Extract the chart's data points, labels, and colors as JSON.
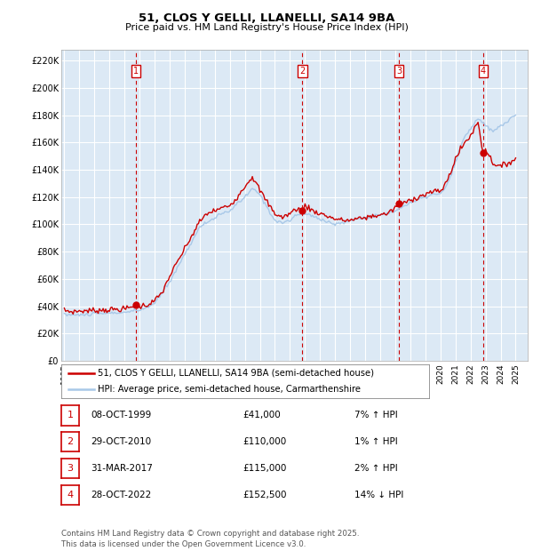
{
  "title": "51, CLOS Y GELLI, LLANELLI, SA14 9BA",
  "subtitle": "Price paid vs. HM Land Registry's House Price Index (HPI)",
  "bg_color": "#dce9f5",
  "grid_color": "#ffffff",
  "hpi_line_color": "#a8c8e8",
  "price_line_color": "#cc0000",
  "marker_color": "#cc0000",
  "vline_color": "#cc0000",
  "yticks": [
    0,
    20000,
    40000,
    60000,
    80000,
    100000,
    120000,
    140000,
    160000,
    180000,
    200000,
    220000
  ],
  "ytick_labels": [
    "£0",
    "£20K",
    "£40K",
    "£60K",
    "£80K",
    "£100K",
    "£120K",
    "£140K",
    "£160K",
    "£180K",
    "£200K",
    "£220K"
  ],
  "xmin": 1994.8,
  "xmax": 2025.8,
  "ymin": 0,
  "ymax": 228000,
  "transactions": [
    {
      "num": 1,
      "date": "08-OCT-1999",
      "year": 1999.77,
      "price": 41000,
      "pct": "7%",
      "dir": "↑"
    },
    {
      "num": 2,
      "date": "29-OCT-2010",
      "year": 2010.83,
      "price": 110000,
      "pct": "1%",
      "dir": "↑"
    },
    {
      "num": 3,
      "date": "31-MAR-2017",
      "year": 2017.25,
      "price": 115000,
      "pct": "2%",
      "dir": "↑"
    },
    {
      "num": 4,
      "date": "28-OCT-2022",
      "year": 2022.83,
      "price": 152500,
      "pct": "14%",
      "dir": "↓"
    }
  ],
  "legend_label_price": "51, CLOS Y GELLI, LLANELLI, SA14 9BA (semi-detached house)",
  "legend_label_hpi": "HPI: Average price, semi-detached house, Carmarthenshire",
  "footer": "Contains HM Land Registry data © Crown copyright and database right 2025.\nThis data is licensed under the Open Government Licence v3.0.",
  "xtick_years": [
    1995,
    1996,
    1997,
    1998,
    1999,
    2000,
    2001,
    2002,
    2003,
    2004,
    2005,
    2006,
    2007,
    2008,
    2009,
    2010,
    2011,
    2012,
    2013,
    2014,
    2015,
    2016,
    2017,
    2018,
    2019,
    2020,
    2021,
    2022,
    2023,
    2024,
    2025
  ]
}
